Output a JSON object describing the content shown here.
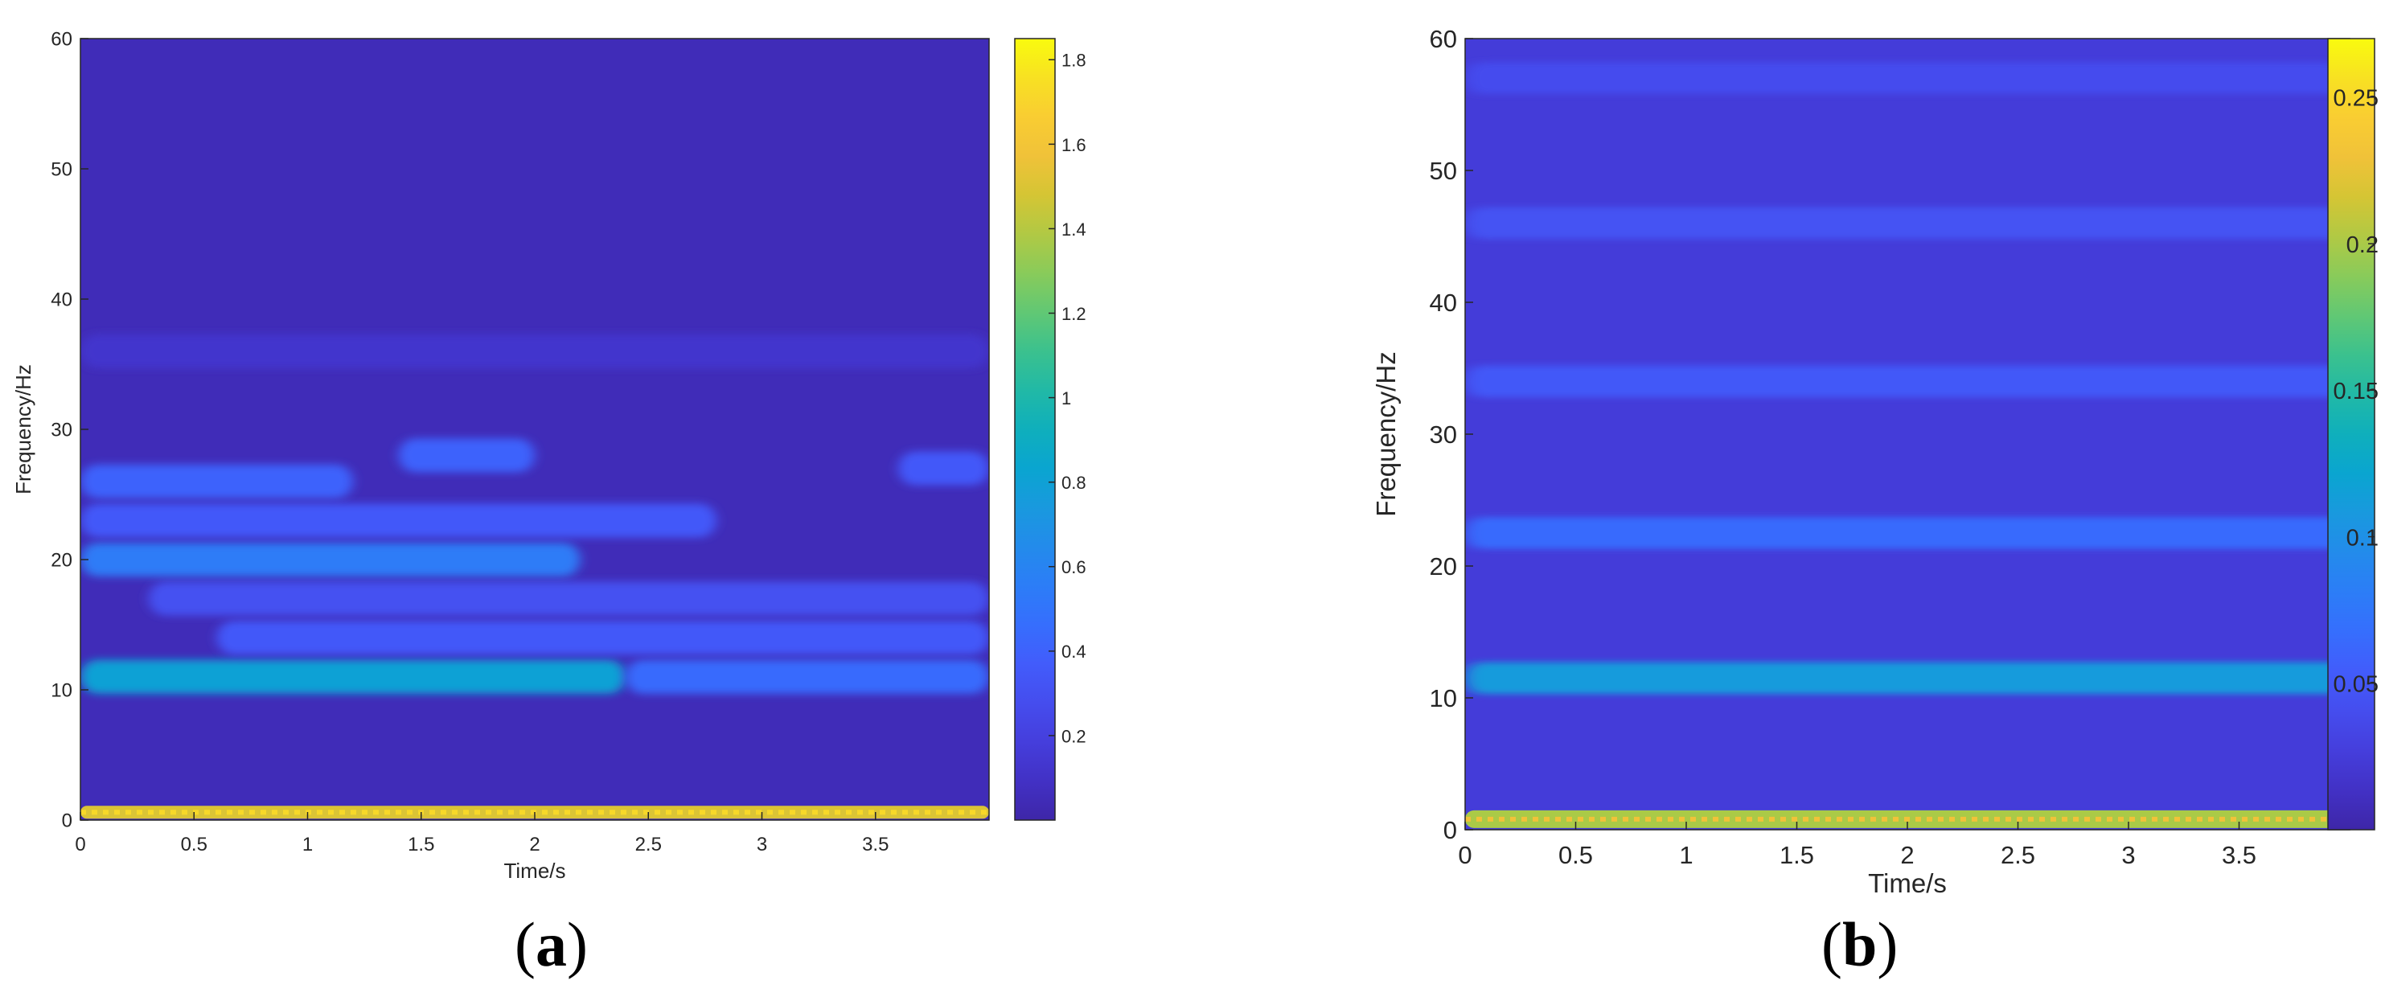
{
  "chart_data": [
    {
      "type": "heatmap",
      "panel_label": "(a)",
      "xlabel": "Time/s",
      "ylabel": "Frequency/Hz",
      "xlim": [
        0,
        4
      ],
      "ylim": [
        0,
        60
      ],
      "xticks": [
        0,
        0.5,
        1,
        1.5,
        2,
        2.5,
        3,
        3.5
      ],
      "yticks": [
        0,
        10,
        20,
        30,
        40,
        50,
        60
      ],
      "colorbar": {
        "min": 0,
        "max": 1.85,
        "ticks": [
          0.2,
          0.4,
          0.6,
          0.8,
          1,
          1.2,
          1.4,
          1.6,
          1.8
        ]
      },
      "colormap": "parula",
      "background_level": 0.05,
      "bands": [
        {
          "freq": 0.6,
          "t_start": 0,
          "t_end": 4,
          "intensity": 1.5
        },
        {
          "freq": 11,
          "t_start": 0,
          "t_end": 2.4,
          "intensity": 0.8
        },
        {
          "freq": 11,
          "t_start": 2.4,
          "t_end": 4,
          "intensity": 0.45
        },
        {
          "freq": 14,
          "t_start": 0.6,
          "t_end": 4,
          "intensity": 0.35
        },
        {
          "freq": 17,
          "t_start": 0.3,
          "t_end": 4,
          "intensity": 0.3
        },
        {
          "freq": 20,
          "t_start": 0,
          "t_end": 2.2,
          "intensity": 0.55
        },
        {
          "freq": 23,
          "t_start": 0,
          "t_end": 2.8,
          "intensity": 0.35
        },
        {
          "freq": 26,
          "t_start": 0,
          "t_end": 1.2,
          "intensity": 0.4
        },
        {
          "freq": 28,
          "t_start": 1.4,
          "t_end": 2,
          "intensity": 0.4
        },
        {
          "freq": 27,
          "t_start": 3.6,
          "t_end": 4,
          "intensity": 0.35
        },
        {
          "freq": 36,
          "t_start": 0,
          "t_end": 4,
          "intensity": 0.12
        }
      ]
    },
    {
      "type": "heatmap",
      "panel_label": "(b)",
      "xlabel": "Time/s",
      "ylabel": "Frequency/Hz",
      "xlim": [
        0,
        4
      ],
      "ylim": [
        0,
        60
      ],
      "xticks": [
        0,
        0.5,
        1,
        1.5,
        2,
        2.5,
        3,
        3.5
      ],
      "yticks": [
        0,
        10,
        20,
        30,
        40,
        50,
        60
      ],
      "colorbar": {
        "min": 0,
        "max": 0.27,
        "ticks": [
          0.05,
          0.1,
          0.15,
          0.2,
          0.25
        ]
      },
      "colormap": "parula",
      "background_level": 0.025,
      "bands": [
        {
          "freq": 0.8,
          "t_start": 0,
          "t_end": 4,
          "intensity": 0.2
        },
        {
          "freq": 11.5,
          "t_start": 0,
          "t_end": 4,
          "intensity": 0.11
        },
        {
          "freq": 22.5,
          "t_start": 0,
          "t_end": 4,
          "intensity": 0.065
        },
        {
          "freq": 34,
          "t_start": 0,
          "t_end": 4,
          "intensity": 0.05
        },
        {
          "freq": 46,
          "t_start": 0,
          "t_end": 4,
          "intensity": 0.045
        },
        {
          "freq": 57,
          "t_start": 0,
          "t_end": 4,
          "intensity": 0.04
        }
      ]
    }
  ]
}
